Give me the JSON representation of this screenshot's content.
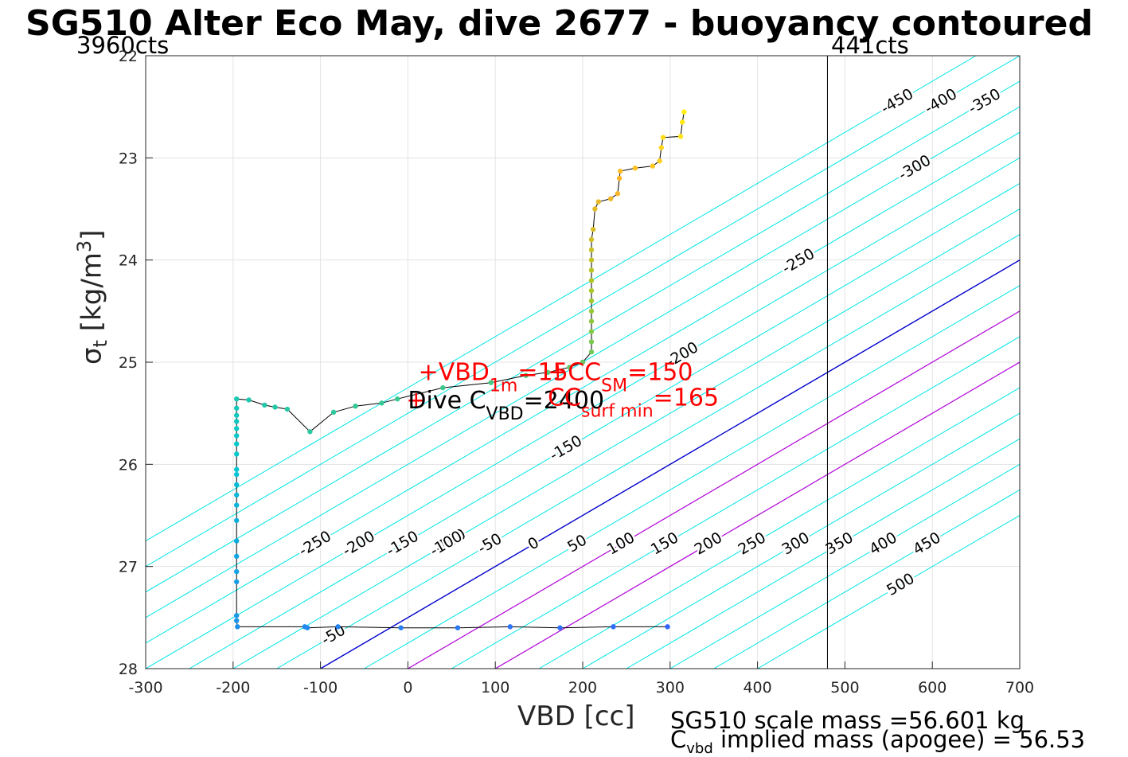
{
  "title": "SG510 Alter Eco May, dive 2677 - buoyancy contoured",
  "top_notes": {
    "left": "3960cts",
    "right": "441cts"
  },
  "footer": {
    "scale_mass": "SG510 scale mass =56.601 kg",
    "implied_mass_c": "C",
    "implied_mass_sub": "vbd",
    "implied_mass_rest": " implied mass (apogee) = 56.53"
  },
  "colors": {
    "contour": "#00e5e5",
    "neutral": "#0000cc",
    "marker": "#b000d8",
    "annotation": "#ff0000",
    "profile_line": "#000000"
  },
  "chart_data": {
    "type": "scatter",
    "title": "SG510 Alter Eco May, dive 2677 - buoyancy contoured",
    "xlabel": "VBD [cc]",
    "ylabel": "σt [kg/m3]",
    "xlim": [
      -300,
      700
    ],
    "ylim": [
      22,
      28
    ],
    "y_reversed": true,
    "grid": true,
    "x_ticks": [
      -300,
      -200,
      -100,
      0,
      100,
      200,
      300,
      400,
      500,
      600,
      700
    ],
    "y_ticks": [
      22,
      23,
      24,
      25,
      26,
      27,
      28
    ],
    "vbd_limit_line": 480,
    "contours": {
      "slope_cc_per_sigma": 200,
      "anchor_sigma": 28,
      "offset_cc": -100,
      "levels": [
        -450,
        -400,
        -350,
        -300,
        -250,
        -200,
        -150,
        -100,
        -50,
        0,
        50,
        100,
        150,
        200,
        250,
        300,
        350,
        400,
        450,
        500
      ],
      "highlighted": [
        100,
        200
      ],
      "neutral_level": 0,
      "upper_label_levels": [
        -450,
        -400,
        -350,
        -300,
        -250,
        -200,
        -150,
        -100,
        -50,
        0,
        50,
        100,
        150,
        200,
        250,
        300,
        350,
        400,
        450,
        500
      ],
      "lower_label_levels": [
        -250,
        -200,
        -150,
        -100,
        -50,
        0,
        50,
        100,
        150,
        200,
        250,
        300,
        350,
        400,
        450,
        500
      ]
    },
    "profile": [
      {
        "x": 297,
        "y": 27.59
      },
      {
        "x": 235,
        "y": 27.59
      },
      {
        "x": 174,
        "y": 27.6
      },
      {
        "x": 117,
        "y": 27.59
      },
      {
        "x": 57,
        "y": 27.6
      },
      {
        "x": -8,
        "y": 27.6
      },
      {
        "x": -80,
        "y": 27.59
      },
      {
        "x": -115,
        "y": 27.6
      },
      {
        "x": -118,
        "y": 27.59
      },
      {
        "x": -195,
        "y": 27.59
      },
      {
        "x": -196,
        "y": 27.53
      },
      {
        "x": -196,
        "y": 27.48
      },
      {
        "x": -196,
        "y": 27.15
      },
      {
        "x": -196,
        "y": 27.05
      },
      {
        "x": -196,
        "y": 26.9
      },
      {
        "x": -196,
        "y": 26.75
      },
      {
        "x": -196,
        "y": 26.55
      },
      {
        "x": -196,
        "y": 26.4
      },
      {
        "x": -196,
        "y": 26.3
      },
      {
        "x": -196,
        "y": 26.2
      },
      {
        "x": -196,
        "y": 26.1
      },
      {
        "x": -196,
        "y": 26.05
      },
      {
        "x": -196,
        "y": 25.9
      },
      {
        "x": -196,
        "y": 25.8
      },
      {
        "x": -196,
        "y": 25.72
      },
      {
        "x": -196,
        "y": 25.65
      },
      {
        "x": -196,
        "y": 25.58
      },
      {
        "x": -196,
        "y": 25.52
      },
      {
        "x": -196,
        "y": 25.45
      },
      {
        "x": -196,
        "y": 25.36
      },
      {
        "x": -182,
        "y": 25.37
      },
      {
        "x": -164,
        "y": 25.42
      },
      {
        "x": -152,
        "y": 25.44
      },
      {
        "x": -138,
        "y": 25.46
      },
      {
        "x": -112,
        "y": 25.68
      },
      {
        "x": -85,
        "y": 25.49
      },
      {
        "x": -60,
        "y": 25.43
      },
      {
        "x": -30,
        "y": 25.4
      },
      {
        "x": -12,
        "y": 25.36
      },
      {
        "x": 40,
        "y": 25.25
      },
      {
        "x": 95,
        "y": 25.2
      },
      {
        "x": 135,
        "y": 25.13
      },
      {
        "x": 160,
        "y": 25.1
      },
      {
        "x": 185,
        "y": 25.05
      },
      {
        "x": 200,
        "y": 25.0
      },
      {
        "x": 210,
        "y": 24.9
      },
      {
        "x": 210,
        "y": 24.8
      },
      {
        "x": 210,
        "y": 24.7
      },
      {
        "x": 210,
        "y": 24.6
      },
      {
        "x": 210,
        "y": 24.5
      },
      {
        "x": 210,
        "y": 24.4
      },
      {
        "x": 210,
        "y": 24.3
      },
      {
        "x": 210,
        "y": 24.2
      },
      {
        "x": 210,
        "y": 24.1
      },
      {
        "x": 210,
        "y": 24.0
      },
      {
        "x": 210,
        "y": 23.9
      },
      {
        "x": 210,
        "y": 23.8
      },
      {
        "x": 212,
        "y": 23.7
      },
      {
        "x": 214,
        "y": 23.5
      },
      {
        "x": 218,
        "y": 23.43
      },
      {
        "x": 232,
        "y": 23.4
      },
      {
        "x": 240,
        "y": 23.35
      },
      {
        "x": 242,
        "y": 23.2
      },
      {
        "x": 243,
        "y": 23.13
      },
      {
        "x": 260,
        "y": 23.1
      },
      {
        "x": 280,
        "y": 23.08
      },
      {
        "x": 288,
        "y": 23.03
      },
      {
        "x": 290,
        "y": 22.9
      },
      {
        "x": 292,
        "y": 22.8
      },
      {
        "x": 312,
        "y": 22.79
      },
      {
        "x": 314,
        "y": 22.65
      },
      {
        "x": 316,
        "y": 22.55
      }
    ],
    "annotations": [
      {
        "x": 12,
        "y": 25.08,
        "text": "+VBD",
        "sub": "1m",
        "rest": "=15",
        "color": "#ff0000"
      },
      {
        "x": 160,
        "y": 25.08,
        "text": "+CC",
        "sub": "SM",
        "rest": "=150",
        "color": "#ff0000"
      },
      {
        "x": -2,
        "y": 25.36,
        "text": "+",
        "sub": "",
        "rest": "",
        "color": "#ff0000"
      },
      {
        "x": 0,
        "y": 25.36,
        "text": "Dive C",
        "sub": "VBD",
        "rest": "=2400",
        "color": "#000000"
      },
      {
        "x": 160,
        "y": 25.33,
        "text": "CC",
        "sub": "surf min",
        "rest": "=165",
        "color": "#ff0000"
      }
    ]
  }
}
